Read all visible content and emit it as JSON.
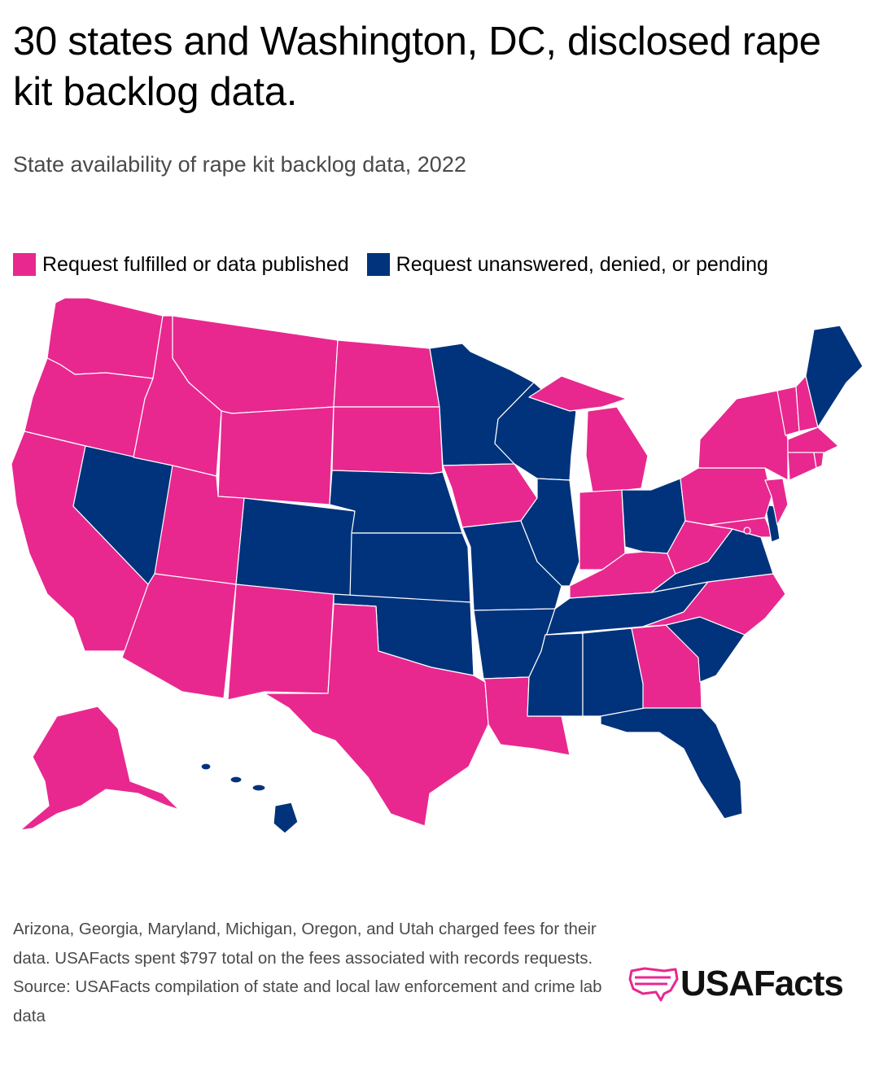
{
  "title": "30 states and Washington, DC, disclosed rape kit backlog data.",
  "subtitle": "State availability of rape kit backlog data, 2022",
  "colors": {
    "fulfilled": "#e8288f",
    "unanswered": "#00337c"
  },
  "legend": [
    {
      "label": "Request fulfilled or data published",
      "color": "#e8288f"
    },
    {
      "label": "Request unanswered, denied, or pending",
      "color": "#00337c"
    }
  ],
  "map_data": {
    "fulfilled": [
      "Washington",
      "Oregon",
      "California",
      "Idaho",
      "Montana",
      "Wyoming",
      "Utah",
      "Arizona",
      "New Mexico",
      "North Dakota",
      "South Dakota",
      "Iowa",
      "Texas",
      "Louisiana",
      "Michigan",
      "Indiana",
      "Kentucky",
      "West Virginia",
      "Pennsylvania",
      "New York",
      "Vermont",
      "New Hampshire",
      "Massachusetts",
      "Connecticut",
      "Rhode Island",
      "New Jersey",
      "Maryland",
      "North Carolina",
      "Georgia",
      "Alaska",
      "Washington, DC"
    ],
    "unanswered": [
      "Nevada",
      "Colorado",
      "Nebraska",
      "Kansas",
      "Oklahoma",
      "Minnesota",
      "Wisconsin",
      "Illinois",
      "Missouri",
      "Arkansas",
      "Mississippi",
      "Alabama",
      "Tennessee",
      "Ohio",
      "Virginia",
      "Delaware",
      "South Carolina",
      "Florida",
      "Maine",
      "Hawaii"
    ]
  },
  "footnote": {
    "note": "Arizona, Georgia, Maryland, Michigan, Oregon, and Utah charged fees for their data. USAFacts spent $797 total on the fees associated with records requests.",
    "source": "Source: USAFacts compilation of state and local law enforcement and crime lab data"
  },
  "brand": {
    "name": "USAFacts",
    "icon": "usa-flag-map-icon"
  }
}
